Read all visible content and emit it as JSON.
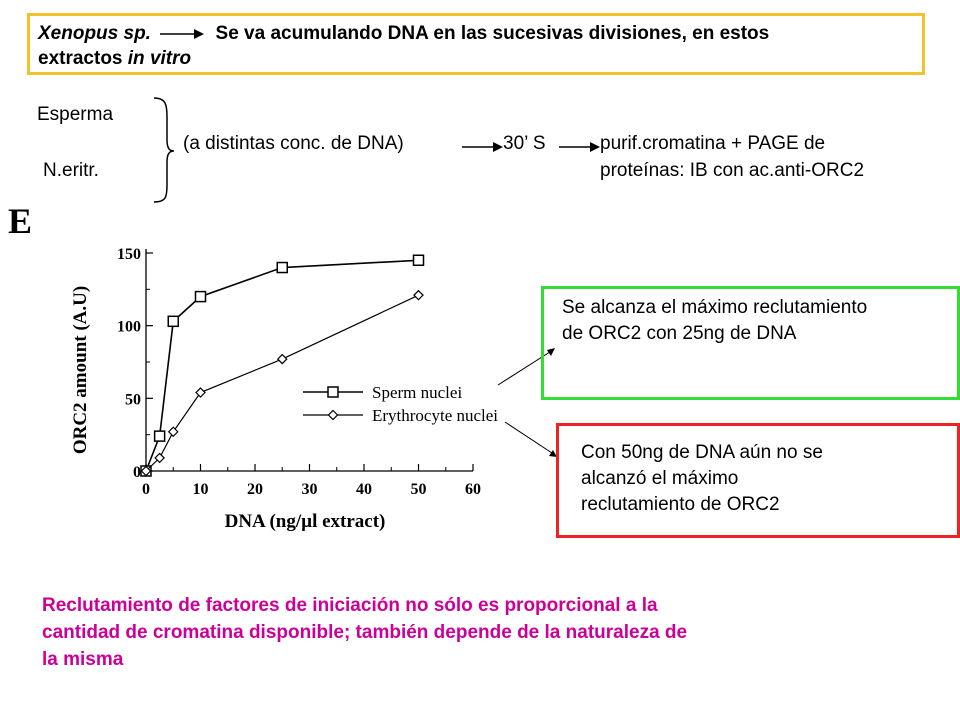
{
  "header": {
    "organism": "Xenopus sp.",
    "statement": "Se va acumulando DNA en las sucesivas divisiones, en estos",
    "statement_line2_prefix": "extractos ",
    "statement_line2_italic": "in vitro"
  },
  "protocol": {
    "source_1": "Esperma",
    "source_2": "N.eritr.",
    "condition": "(a distintas conc. de DNA)",
    "step": "30’ S",
    "readout_line1": "purif.cromatina + PAGE de",
    "readout_line2": "proteínas: IB con ac.anti-ORC2"
  },
  "panel_label": "E",
  "chart_data": {
    "type": "line",
    "xlabel": "DNA (ng/µl extract)",
    "ylabel": "ORC2 amount (A.U)",
    "xlim": [
      0,
      60
    ],
    "ylim": [
      0,
      150
    ],
    "x_ticks": [
      "0",
      "10",
      "20",
      "30",
      "40",
      "50",
      "60"
    ],
    "y_ticks": [
      "0",
      "50",
      "100",
      "150"
    ],
    "grid": false,
    "legend_position": "center-right",
    "series": [
      {
        "name": "Sperm nuclei",
        "marker": "square",
        "points": [
          [
            0,
            0
          ],
          [
            2.5,
            24
          ],
          [
            5,
            103
          ],
          [
            10,
            120
          ],
          [
            25,
            140
          ],
          [
            50,
            145
          ]
        ]
      },
      {
        "name": "Erythrocyte nuclei",
        "marker": "diamond",
        "points": [
          [
            0,
            0
          ],
          [
            2.5,
            9
          ],
          [
            5,
            27
          ],
          [
            10,
            54
          ],
          [
            25,
            77
          ],
          [
            50,
            121
          ]
        ]
      }
    ]
  },
  "annotations": {
    "green_note": [
      "Se alcanza el máximo reclutamiento",
      "de ORC2 con 25ng de DNA"
    ],
    "red_note": [
      "Con 50ng de DNA aún no se",
      "alcanzó el máximo",
      "reclutamiento de ORC2"
    ]
  },
  "conclusion": [
    "Reclutamiento de factores de iniciación no sólo es proporcional a la",
    "cantidad de cromatina disponible; también depende de la naturaleza de",
    "la misma"
  ],
  "colors": {
    "title_border": "#f2c12e",
    "green_border": "#33dd33",
    "red_border": "#ee2222",
    "conclusion_text": "#cc0099"
  }
}
